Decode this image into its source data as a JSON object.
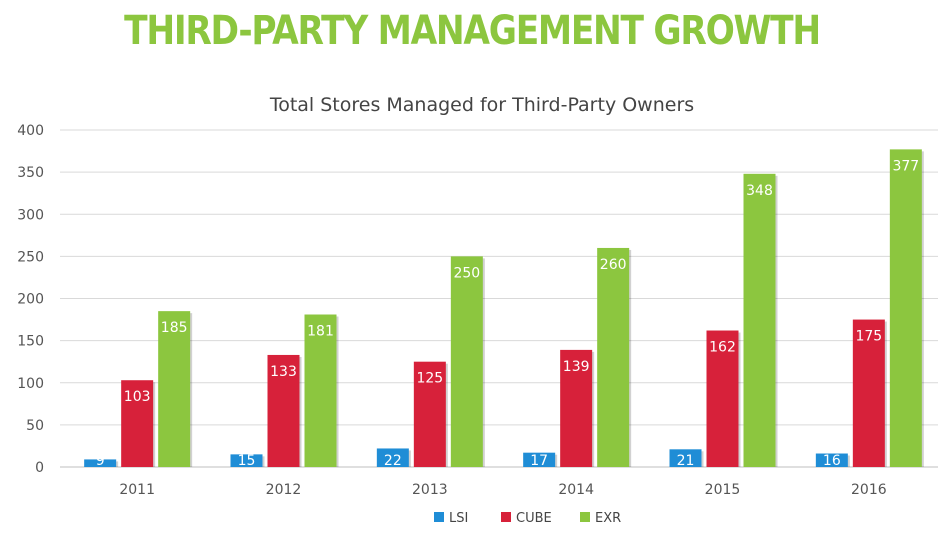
{
  "headline": "THIRD-PARTY MANAGEMENT GROWTH",
  "colors": {
    "headline": "#8cc63f"
  },
  "chart_data": {
    "type": "bar",
    "title": "Total Stores Managed for Third-Party Owners",
    "xlabel": "",
    "ylabel": "",
    "categories": [
      "2011",
      "2012",
      "2013",
      "2014",
      "2015",
      "2016"
    ],
    "ylim": [
      0,
      400
    ],
    "yticks": [
      0,
      50,
      100,
      150,
      200,
      250,
      300,
      350,
      400
    ],
    "grid": true,
    "legend_position": "bottom",
    "series": [
      {
        "name": "LSI",
        "color": "#1f8dd6",
        "values": [
          9,
          15,
          22,
          17,
          21,
          16
        ]
      },
      {
        "name": "CUBE",
        "color": "#d7213a",
        "values": [
          103,
          133,
          125,
          139,
          162,
          175
        ]
      },
      {
        "name": "EXR",
        "color": "#8cc63f",
        "values": [
          185,
          181,
          250,
          260,
          348,
          377
        ]
      }
    ]
  }
}
